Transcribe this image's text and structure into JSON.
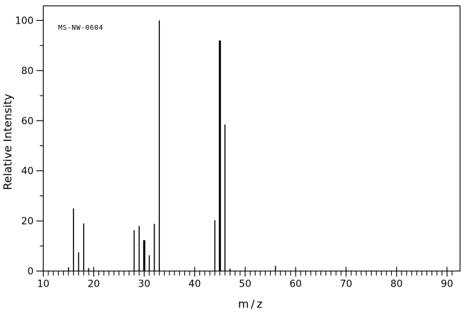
{
  "annotation": "MS-NW-0604",
  "chart_data": {
    "type": "bar",
    "title": "MS-NW-0604",
    "xlabel": "m/z",
    "ylabel": "Relative Intensity",
    "xlim": [
      10,
      92.3
    ],
    "ylim": [
      0,
      100
    ],
    "x_major_ticks": [
      10,
      20,
      30,
      40,
      50,
      60,
      70,
      80,
      90
    ],
    "y_major_ticks": [
      0,
      20,
      40,
      60,
      80,
      100
    ],
    "x_minor_tick_step": 1,
    "y_minor_tick_step": 10,
    "grid": false,
    "legend": false,
    "colors": {
      "line": "#000000",
      "background": "#ffffff"
    },
    "peaks": [
      {
        "mz": 15,
        "intensity": 1.5
      },
      {
        "mz": 16,
        "intensity": 25
      },
      {
        "mz": 17,
        "intensity": 7.5
      },
      {
        "mz": 18,
        "intensity": 19
      },
      {
        "mz": 19,
        "intensity": 1.2
      },
      {
        "mz": 28,
        "intensity": 16.3
      },
      {
        "mz": 29,
        "intensity": 18
      },
      {
        "mz": 30,
        "intensity": 12.3,
        "bold": true
      },
      {
        "mz": 31,
        "intensity": 6.3
      },
      {
        "mz": 32,
        "intensity": 18.8
      },
      {
        "mz": 33,
        "intensity": 100
      },
      {
        "mz": 44,
        "intensity": 20.3
      },
      {
        "mz": 45,
        "intensity": 92,
        "bold": true
      },
      {
        "mz": 46,
        "intensity": 58.5
      },
      {
        "mz": 47,
        "intensity": 1
      },
      {
        "mz": 56,
        "intensity": 2.1
      }
    ]
  }
}
